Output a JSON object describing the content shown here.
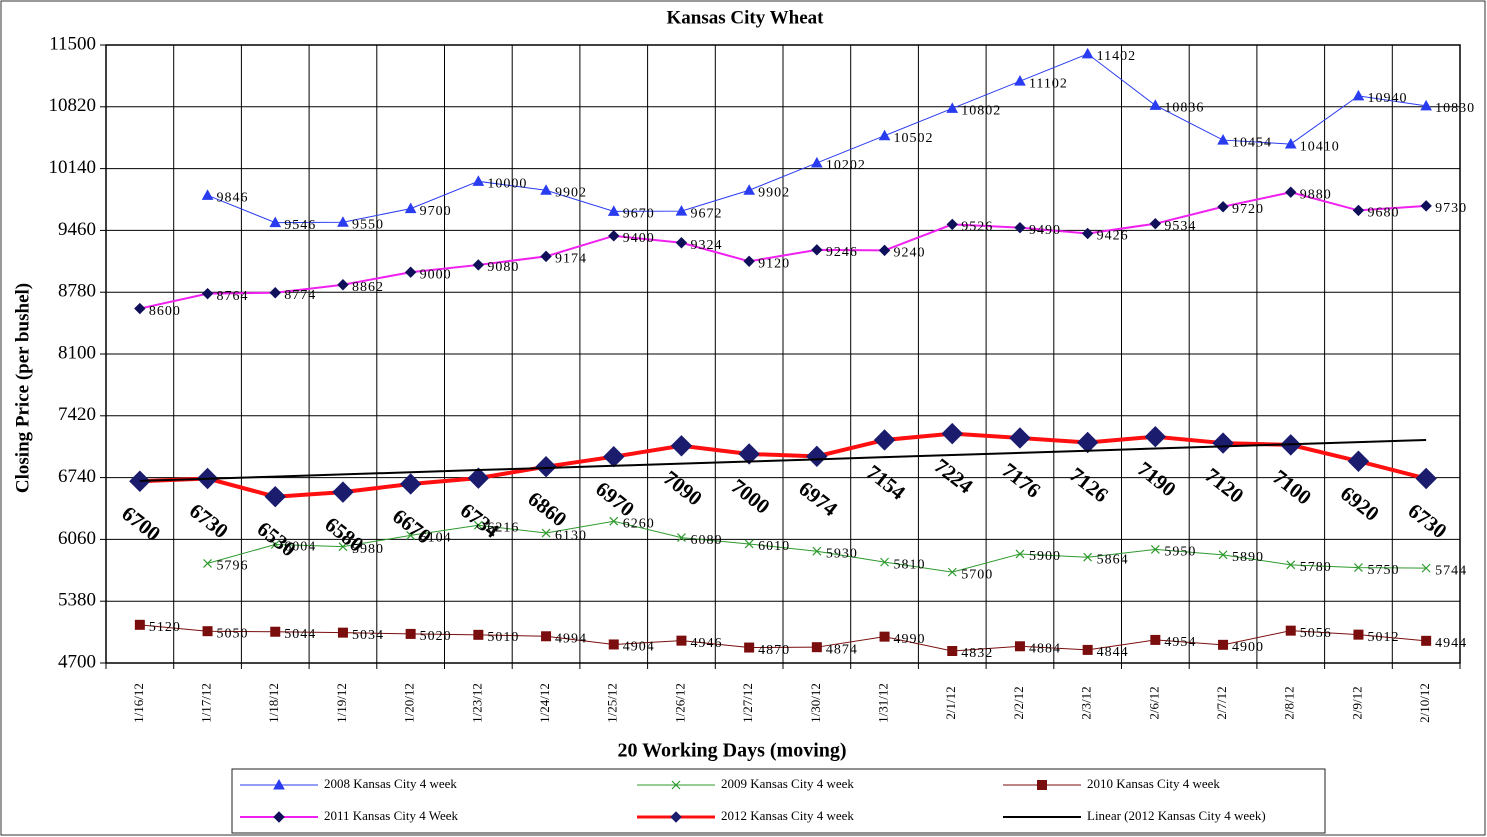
{
  "chart_data": {
    "type": "line",
    "title": "Kansas City Wheat",
    "y_label": "Closing Price (per bushel)",
    "x_label": "20 Working Days (moving)",
    "categories": [
      "1/16/12",
      "1/17/12",
      "1/18/12",
      "1/19/12",
      "1/20/12",
      "1/23/12",
      "1/24/12",
      "1/25/12",
      "1/26/12",
      "1/27/12",
      "1/30/12",
      "1/31/12",
      "2/1/12",
      "2/2/12",
      "2/3/12",
      "2/6/12",
      "2/7/12",
      "2/8/12",
      "2/9/12",
      "2/10/12"
    ],
    "ylim": [
      4700,
      11500
    ],
    "yticks": [
      4700,
      5380,
      6060,
      6740,
      7420,
      8100,
      8780,
      9460,
      10140,
      10820,
      11500
    ],
    "grid": true,
    "legend": "bottom",
    "series": [
      {
        "name": "2008 Kansas City 4 week",
        "color": "#2a3cf0",
        "marker": "triangle",
        "marker_color": "#2a3cf0",
        "line_width": 1,
        "data_labels": true,
        "values": [
          null,
          9846,
          9546,
          9550,
          9700,
          10000,
          9902,
          9670,
          9672,
          9902,
          10202,
          10502,
          10802,
          11102,
          11402,
          10836,
          10454,
          10410,
          10940,
          10830
        ]
      },
      {
        "name": "2009 Kansas City 4 week",
        "color": "#2e9a2e",
        "marker": "x",
        "marker_color": "#2e9a2e",
        "line_width": 1,
        "data_labels": true,
        "values": [
          null,
          5796,
          6004,
          5980,
          6104,
          6216,
          6130,
          6260,
          6080,
          6010,
          5930,
          5810,
          5700,
          5900,
          5864,
          5950,
          5890,
          5780,
          5750,
          5744
        ]
      },
      {
        "name": "2010 Kansas City 4 week",
        "color": "#7a0d0d",
        "marker": "square",
        "marker_color": "#7a0d0d",
        "line_width": 1,
        "data_labels": true,
        "values": [
          5120,
          5050,
          5044,
          5034,
          5020,
          5010,
          4994,
          4904,
          4946,
          4870,
          4874,
          4990,
          4832,
          4884,
          4844,
          4954,
          4900,
          5056,
          5012,
          4944
        ]
      },
      {
        "name": "2011 Kansas City 4 Week",
        "color": "#f020f0",
        "marker": "diamond",
        "marker_color": "#10105a",
        "line_width": 2,
        "data_labels": true,
        "values": [
          8600,
          8764,
          8774,
          8862,
          9000,
          9080,
          9174,
          9400,
          9324,
          9120,
          9246,
          9240,
          9526,
          9490,
          9426,
          9534,
          9720,
          9880,
          9680,
          9730
        ]
      },
      {
        "name": "2012 Kansas City 4 week",
        "color": "#ff1010",
        "marker": "bigdiamond",
        "marker_color": "#1c1c6e",
        "line_width": 4,
        "data_labels": true,
        "values": [
          6700,
          6730,
          6530,
          6580,
          6670,
          6734,
          6860,
          6970,
          7090,
          7000,
          6974,
          7154,
          7224,
          7176,
          7126,
          7190,
          7120,
          7100,
          6920,
          6730
        ]
      },
      {
        "name": "Linear (2012 Kansas City 4 week)",
        "color": "#000000",
        "marker": "none",
        "line_width": 2,
        "data_labels": false,
        "values": [
          6704,
          6728,
          6751,
          6775,
          6799,
          6823,
          6846,
          6870,
          6894,
          6917,
          6941,
          6965,
          6988,
          7012,
          7036,
          7060,
          7083,
          7107,
          7131,
          7154
        ]
      }
    ]
  }
}
